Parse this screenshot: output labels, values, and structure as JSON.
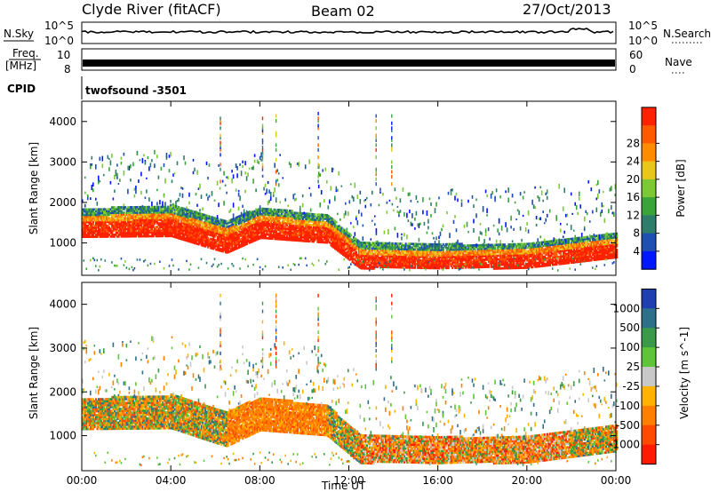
{
  "header": {
    "station": "Clyde River (fitACF)",
    "beam": "Beam 02",
    "date": "27/Oct/2013"
  },
  "nsky_panel": {
    "left_label": "N.Sky",
    "right_label": "N.Search",
    "left_ticks": [
      "10^5",
      "10^0"
    ],
    "right_ticks": [
      "10^5",
      "10^0"
    ]
  },
  "freq_panel": {
    "left_label_top": "Freq.",
    "left_label_bottom": "[MHz]",
    "right_label": "Nave",
    "left_ticks": [
      "10",
      "8"
    ],
    "right_ticks": [
      "60",
      "0"
    ]
  },
  "cpid_panel": {
    "label": "CPID",
    "value": "twofsound -3501"
  },
  "chart_data": [
    {
      "type": "heatmap",
      "name": "power",
      "ylabel": "Slant Range [km]",
      "ylim": [
        200,
        4500
      ],
      "yticks": [
        1000,
        2000,
        3000,
        4000
      ],
      "xlim": [
        0,
        24
      ],
      "xticks": [
        "00:00",
        "04:00",
        "08:00",
        "12:00",
        "16:00",
        "20:00",
        "00:00"
      ],
      "colorbar": {
        "label": "Power [dB]",
        "ticks": [
          "4",
          "8",
          "12",
          "16",
          "20",
          "24",
          "28"
        ],
        "colors": [
          "#0018ff",
          "#1f4fb0",
          "#2e7d6a",
          "#3aa33a",
          "#7cc935",
          "#e8c71a",
          "#ff8c00",
          "#ff5a00",
          "#ff2200"
        ]
      },
      "ground_band_km": {
        "start": [
          [
            0,
            1450
          ],
          [
            4,
            1500
          ],
          [
            6.5,
            1100
          ],
          [
            8,
            1450
          ],
          [
            11,
            1300
          ],
          [
            12.5,
            650
          ],
          [
            16,
            600
          ],
          [
            20,
            650
          ],
          [
            24,
            900
          ]
        ],
        "width": [
          [
            0,
            700
          ],
          [
            6,
            800
          ],
          [
            12.5,
            650
          ],
          [
            24,
            600
          ]
        ]
      }
    },
    {
      "type": "heatmap",
      "name": "velocity",
      "ylabel": "Slant Range [km]",
      "ylim": [
        200,
        4500
      ],
      "yticks": [
        1000,
        2000,
        3000,
        4000
      ],
      "xlim": [
        0,
        24
      ],
      "xticks": [
        "00:00",
        "04:00",
        "08:00",
        "12:00",
        "16:00",
        "20:00",
        "00:00"
      ],
      "xlabel": "Time UT",
      "colorbar": {
        "label": "Velocity [m s^-1]",
        "ticks": [
          "1000",
          "500",
          "100",
          "25",
          "-25",
          "-100",
          "-500",
          "-1000"
        ],
        "colors": [
          "#1f3fb0",
          "#2e6f8a",
          "#3a9a4a",
          "#5fc43a",
          "#c8c8c8",
          "#ffb300",
          "#ff8000",
          "#ff4a00",
          "#ff1a00"
        ]
      }
    }
  ]
}
